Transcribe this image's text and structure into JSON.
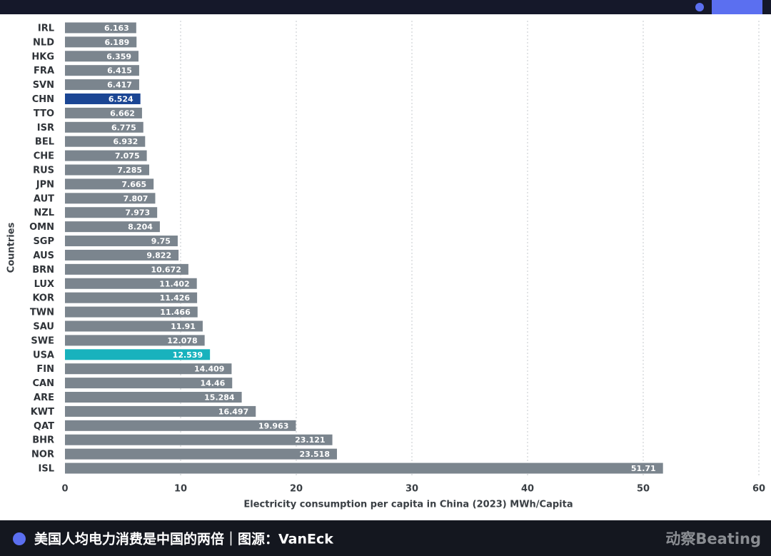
{
  "chart_data": {
    "type": "barh",
    "x_label": "Electricity consumption per capita in China (2023) MWh/Capita",
    "y_label": "Countries",
    "categories": [
      "IRL",
      "NLD",
      "HKG",
      "FRA",
      "SVN",
      "CHN",
      "TTO",
      "ISR",
      "BEL",
      "CHE",
      "RUS",
      "JPN",
      "AUT",
      "NZL",
      "OMN",
      "SGP",
      "AUS",
      "BRN",
      "LUX",
      "KOR",
      "TWN",
      "SAU",
      "SWE",
      "USA",
      "FIN",
      "CAN",
      "ARE",
      "KWT",
      "QAT",
      "BHR",
      "NOR",
      "ISL"
    ],
    "values": [
      6.163,
      6.189,
      6.359,
      6.415,
      6.417,
      6.524,
      6.662,
      6.775,
      6.932,
      7.075,
      7.285,
      7.665,
      7.807,
      7.973,
      8.204,
      9.75,
      9.822,
      10.672,
      11.402,
      11.426,
      11.466,
      11.91,
      12.078,
      12.539,
      14.409,
      14.46,
      15.284,
      16.497,
      19.963,
      23.121,
      23.518,
      51.71
    ],
    "colors": [
      "#7b858e",
      "#7b858e",
      "#7b858e",
      "#7b858e",
      "#7b858e",
      "#1b4694",
      "#7b858e",
      "#7b858e",
      "#7b858e",
      "#7b858e",
      "#7b858e",
      "#7b858e",
      "#7b858e",
      "#7b858e",
      "#7b858e",
      "#7b858e",
      "#7b858e",
      "#7b858e",
      "#7b858e",
      "#7b858e",
      "#7b858e",
      "#7b858e",
      "#7b858e",
      "#18b2bd",
      "#7b858e",
      "#7b858e",
      "#7b858e",
      "#7b858e",
      "#7b858e",
      "#7b858e",
      "#7b858e",
      "#7b858e"
    ],
    "xlim": [
      0,
      60
    ],
    "xticks": [
      0,
      10,
      20,
      30,
      40,
      50,
      60
    ],
    "grid": true
  },
  "footer": {
    "caption": "美国人均电力消费是中国的两倍｜图源：VanEck",
    "logo": "动察Beating"
  }
}
